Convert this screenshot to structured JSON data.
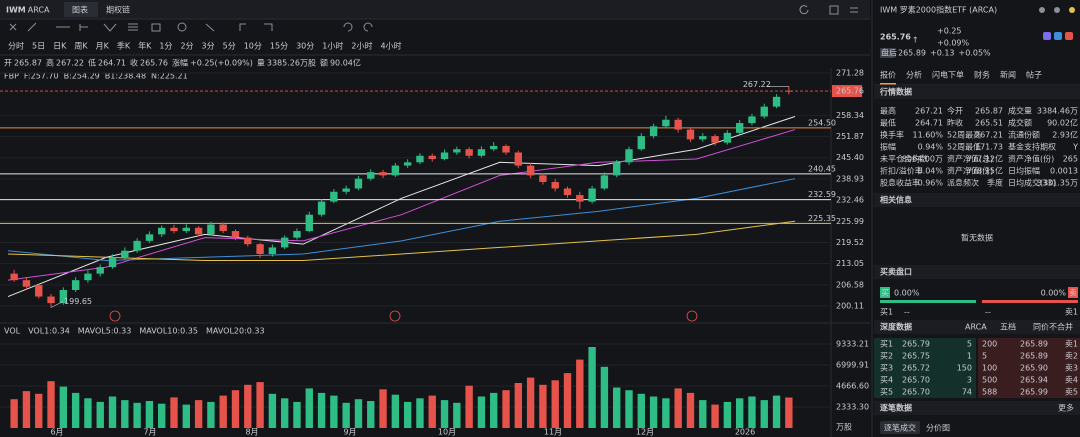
{
  "top": {
    "symbol": "IWM",
    "exchange": "ARCA",
    "tabs": [
      "图表",
      "期权链"
    ]
  },
  "periods": [
    "分时",
    "5日",
    "日K",
    "周K",
    "月K",
    "季K",
    "年K",
    "1分",
    "2分",
    "3分",
    "5分",
    "10分",
    "15分",
    "30分",
    "1小时",
    "2小时",
    "4小时"
  ],
  "ohlc_bar": [
    {
      "label": "开",
      "value": "265.87"
    },
    {
      "label": "高",
      "value": "267.22"
    },
    {
      "label": "低",
      "value": "264.71"
    },
    {
      "label": "收",
      "value": "265.76"
    },
    {
      "label": "涨幅",
      "value": "+0.25(+0.09%)"
    },
    {
      "label": "量",
      "value": "3385.26万股"
    },
    {
      "label": "额",
      "value": "90.04亿"
    }
  ],
  "fbp": [
    {
      "text": "FBP",
      "color": "#c9ccd1"
    },
    {
      "text": "F:257.70",
      "color": "#c9ccd1"
    },
    {
      "text": "B:254.29",
      "color": "#d04fd6"
    },
    {
      "text": "B1:238.48",
      "color": "#3d8fd9"
    },
    {
      "text": "N:225.21",
      "color": "#e3c14a"
    }
  ],
  "chart": {
    "ylim": [
      200.11,
      271.28
    ],
    "yticks": [
      271.28,
      258.34,
      251.87,
      {
        "value": 245.4,
        "label": "245.40"
      },
      238.93,
      232.46,
      225.99,
      219.52,
      213.05,
      206.58,
      200.11
    ],
    "last_price": {
      "value": 265.76,
      "label": "265.76",
      "color": "#e5534b"
    },
    "levels": [
      {
        "value": 254.5,
        "label": "254.50",
        "color": "#f0883e"
      },
      {
        "value": 240.45,
        "label": "240.45",
        "color": "#e6e6e6"
      },
      {
        "value": 232.59,
        "label": "232.59",
        "color": "#e6e6e6"
      },
      {
        "value": 225.35,
        "label": "225.35",
        "color": "#e3c14a"
      }
    ],
    "high_note": 267.22,
    "low_note": 199.65,
    "up_color": "#2ebd85",
    "down_color": "#e5534b",
    "candles": [
      [
        210,
        211.2,
        207.5,
        208
      ],
      [
        208,
        209,
        205.2,
        206
      ],
      [
        206.5,
        207,
        202.4,
        203
      ],
      [
        203,
        203.8,
        199.65,
        201
      ],
      [
        201,
        205.8,
        200.5,
        205
      ],
      [
        205,
        208.9,
        204.4,
        208
      ],
      [
        208,
        211,
        207.2,
        210
      ],
      [
        210,
        212.8,
        209.1,
        212
      ],
      [
        212,
        215.9,
        211.5,
        215
      ],
      [
        215,
        218,
        214.2,
        217
      ],
      [
        217,
        220.8,
        216.3,
        220
      ],
      [
        220,
        222.9,
        219.4,
        222
      ],
      [
        222,
        224.7,
        221.2,
        224
      ],
      [
        224,
        224.9,
        222.3,
        223
      ],
      [
        223,
        225.1,
        222.4,
        224
      ],
      [
        224,
        224.5,
        221.3,
        222
      ],
      [
        222,
        225.8,
        221.6,
        225
      ],
      [
        225,
        225.6,
        222.4,
        223
      ],
      [
        223,
        223.5,
        220.2,
        221
      ],
      [
        221,
        221.6,
        218.3,
        219
      ],
      [
        219,
        219.4,
        214.8,
        216
      ],
      [
        216,
        218.9,
        215.2,
        218
      ],
      [
        218,
        221.7,
        217.5,
        221
      ],
      [
        221,
        223.8,
        220.4,
        223
      ],
      [
        223,
        228.9,
        222.6,
        228
      ],
      [
        228,
        232.7,
        227.4,
        232
      ],
      [
        232,
        235.8,
        231.5,
        235
      ],
      [
        235,
        236.9,
        234.2,
        236
      ],
      [
        236,
        239.8,
        235.5,
        239
      ],
      [
        239,
        241.9,
        238.4,
        241
      ],
      [
        241,
        241.7,
        239.2,
        240
      ],
      [
        240,
        243.8,
        239.5,
        243
      ],
      [
        243,
        244.9,
        242.3,
        244
      ],
      [
        244,
        246.8,
        243.4,
        246
      ],
      [
        246,
        246.7,
        244.2,
        245
      ],
      [
        245,
        247.9,
        244.6,
        247
      ],
      [
        247,
        248.8,
        246.3,
        248
      ],
      [
        248,
        248.6,
        245.2,
        246
      ],
      [
        246,
        248.9,
        245.5,
        248
      ],
      [
        248,
        250.2,
        247.4,
        249
      ],
      [
        249,
        249.5,
        246.3,
        247
      ],
      [
        247,
        247.6,
        242.2,
        243
      ],
      [
        243,
        243.8,
        239.1,
        240
      ],
      [
        240,
        240.7,
        237.2,
        238
      ],
      [
        238,
        238.9,
        235.1,
        236
      ],
      [
        236,
        236.6,
        233.2,
        234
      ],
      [
        234,
        235,
        229.8,
        232
      ],
      [
        232,
        236.8,
        231.4,
        236
      ],
      [
        236,
        240.9,
        235.5,
        240
      ],
      [
        240,
        244.7,
        239.4,
        244
      ],
      [
        244,
        248.8,
        243.2,
        248
      ],
      [
        248,
        252.9,
        247.5,
        252
      ],
      [
        252,
        255.8,
        251.3,
        255
      ],
      [
        255,
        258.2,
        254.4,
        257
      ],
      [
        257,
        257.6,
        253.1,
        254
      ],
      [
        254,
        254.7,
        250.2,
        251
      ],
      [
        251,
        252.9,
        250.3,
        252
      ],
      [
        252,
        252.6,
        249.1,
        250
      ],
      [
        250,
        253.8,
        249.4,
        253
      ],
      [
        253,
        256.9,
        252.5,
        256
      ],
      [
        256,
        258.8,
        255.3,
        258
      ],
      [
        258,
        261.9,
        257.4,
        261
      ],
      [
        261,
        264.8,
        260.5,
        264
      ],
      [
        265.87,
        267.22,
        264.71,
        265.76
      ]
    ],
    "ma": [
      {
        "color": "#e6e6e6",
        "values": [
          203,
          215,
          222,
          219,
          233,
          244,
          243,
          248,
          258
        ]
      },
      {
        "color": "#d04fd6",
        "values": [
          208,
          212,
          221,
          220,
          228,
          240,
          244,
          245,
          254
        ]
      },
      {
        "color": "#3d8fd9",
        "values": [
          217,
          214,
          215,
          216,
          220,
          226,
          229,
          233,
          239
        ]
      },
      {
        "color": "#e3c14a",
        "values": [
          216,
          215,
          214,
          214,
          216,
          218,
          220,
          222,
          226
        ]
      }
    ],
    "months": [
      "6月",
      "7月",
      "8月",
      "9月",
      "10月",
      "11月",
      "12月",
      "2026"
    ]
  },
  "volume": {
    "legend": [
      {
        "text": "VOL",
        "color": "#c9ccd1"
      },
      {
        "text": "VOL1:0.34",
        "color": "#e5534b"
      },
      {
        "text": "MAVOL5:0.33",
        "color": "#3d8fd9"
      },
      {
        "text": "MAVOL10:0.35",
        "color": "#d04fd6"
      },
      {
        "text": "MAVOL20:0.33",
        "color": "#e3c14a"
      }
    ],
    "ylim": [
      0,
      9333.21
    ],
    "yticks": [
      9333.21,
      6999.91,
      {
        "value": 4666.6,
        "label": "4666.60"
      },
      {
        "value": 2333.3,
        "label": "2333.30"
      }
    ],
    "unit": "万股",
    "values": [
      3200,
      4100,
      3800,
      5200,
      4600,
      3900,
      3300,
      2900,
      3500,
      3100,
      2800,
      3000,
      2700,
      3400,
      2600,
      3100,
      2900,
      3600,
      4200,
      4800,
      5100,
      3800,
      3300,
      2900,
      4400,
      3900,
      3600,
      2800,
      3200,
      3000,
      4300,
      3700,
      2900,
      3300,
      3600,
      3100,
      2800,
      4700,
      3500,
      3900,
      4200,
      5000,
      5600,
      4800,
      5300,
      6100,
      7600,
      9000,
      6800,
      4500,
      4200,
      3800,
      3500,
      3300,
      4400,
      3900,
      3100,
      2600,
      2900,
      3300,
      3500,
      3100,
      3600,
      3385.26
    ]
  },
  "quote": {
    "title": "IWM 罗素2000指数ETF (ARCA)",
    "price": "265.76",
    "arrow": "↑",
    "change": "+0.25",
    "change_pct": "+0.09%",
    "after_tag": "盘后",
    "after_price": "265.89",
    "after_change": "+0.13",
    "after_pct": "+0.05%"
  },
  "tabs": [
    "报价",
    "分析",
    "闪电下单",
    "财务",
    "新闻",
    "帖子"
  ],
  "market": {
    "title": "行情数据",
    "rows": [
      [
        "最高",
        "267.21",
        "今开",
        "265.87",
        "成交量",
        "3384.46万"
      ],
      [
        "最低",
        "264.71",
        "昨收",
        "265.51",
        "成交额",
        "90.02亿"
      ],
      [
        "换手率",
        "11.60%",
        "52周最高",
        "267.21",
        "流通份额",
        "2.93亿"
      ],
      [
        "振幅",
        "0.94%",
        "52周最低",
        "171.73",
        "基金支持期权",
        "Y"
      ],
      [
        "未平仓合约数",
        "8064.00万",
        "资产净值(总)",
        "777.12亿",
        "资产净值(份)",
        "265"
      ],
      [
        "折扣/溢价率",
        "0.04%",
        "资产净值(份)",
        "778.15亿",
        "日均振幅",
        "0.0013"
      ],
      [
        "股息收益率",
        "0.96%",
        "派息频次",
        "季度",
        "日均成交(30)",
        "3331.35万"
      ]
    ]
  },
  "related": {
    "title": "相关信息",
    "empty": "暂无数据"
  },
  "orderbook": {
    "title": "买卖盘口",
    "buy": "买",
    "buy_pct": "0.00%",
    "sell_pct": "0.00%",
    "sell": "卖",
    "buy1": "买1",
    "sell1": "卖1",
    "dash": "--"
  },
  "depth": {
    "title": "深度数据",
    "exchange": "ARCA",
    "mode": "五档",
    "merge": "同价不合并",
    "rows": [
      [
        "买1",
        "265.79",
        "5",
        "200",
        "265.89",
        "卖1"
      ],
      [
        "买2",
        "265.75",
        "1",
        "5",
        "265.89",
        "卖2"
      ],
      [
        "买3",
        "265.72",
        "150",
        "100",
        "265.90",
        "卖3"
      ],
      [
        "买4",
        "265.70",
        "3",
        "500",
        "265.94",
        "卖4"
      ],
      [
        "买5",
        "265.70",
        "74",
        "588",
        "265.99",
        "卖5"
      ]
    ]
  },
  "trades": {
    "title": "逐笔数据",
    "more": "更多",
    "tabs": [
      "逐笔成交",
      "分价图"
    ]
  }
}
